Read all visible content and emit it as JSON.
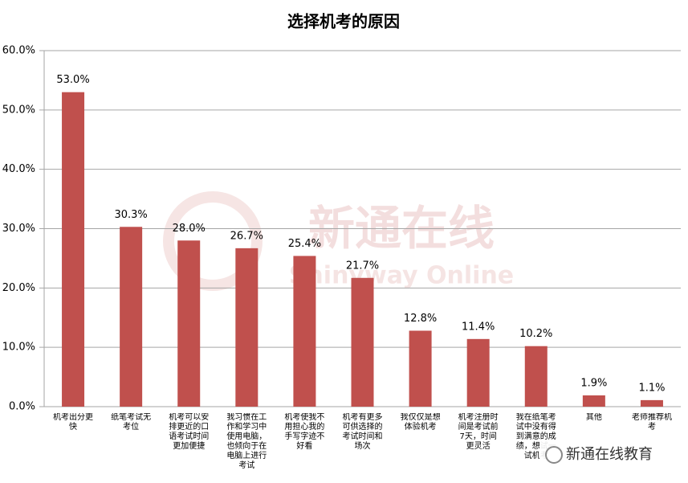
{
  "chart_data": {
    "type": "bar",
    "title": "选择机考的原因",
    "categories": [
      "机考出分更快",
      "纸笔考试无考位",
      "机考可以安排更近的口语考试时间更加便捷",
      "我习惯在工作和学习中使用电脑，也倾向于在电脑上进行考试",
      "机考使我不用担心我的手写字迹不好看",
      "机考有更多可供选择的考试时间和场次",
      "我仅仅是想体验机考",
      "机考注册时间是考试前7天，时间更灵活",
      "我在纸笔考试中没有得到满意的成绩，想试一试机考",
      "其他",
      "老师推荐机考"
    ],
    "values": [
      53.0,
      30.3,
      28.0,
      26.7,
      25.4,
      21.7,
      12.8,
      11.4,
      10.2,
      1.9,
      1.1
    ],
    "value_labels": [
      "53.0%",
      "30.3%",
      "28.0%",
      "26.7%",
      "25.4%",
      "21.7%",
      "12.8%",
      "11.4%",
      "10.2%",
      "1.9%",
      "1.1%"
    ],
    "color": "#c0504d",
    "ylim": [
      0,
      60
    ],
    "yticks": [
      {
        "value": 0,
        "label": "0.0%"
      },
      {
        "value": 10,
        "label": "10.0%"
      },
      {
        "value": 20,
        "label": "20.0%"
      },
      {
        "value": 30,
        "label": "30.0%"
      },
      {
        "value": 40,
        "label": "40.0%"
      },
      {
        "value": 50,
        "label": "50.0%"
      },
      {
        "value": 60,
        "label": "60.0%"
      }
    ],
    "grid": true,
    "watermark": {
      "cn": "新通在线",
      "en": "Shinyway Online"
    },
    "source_badge": "新通在线教育"
  }
}
